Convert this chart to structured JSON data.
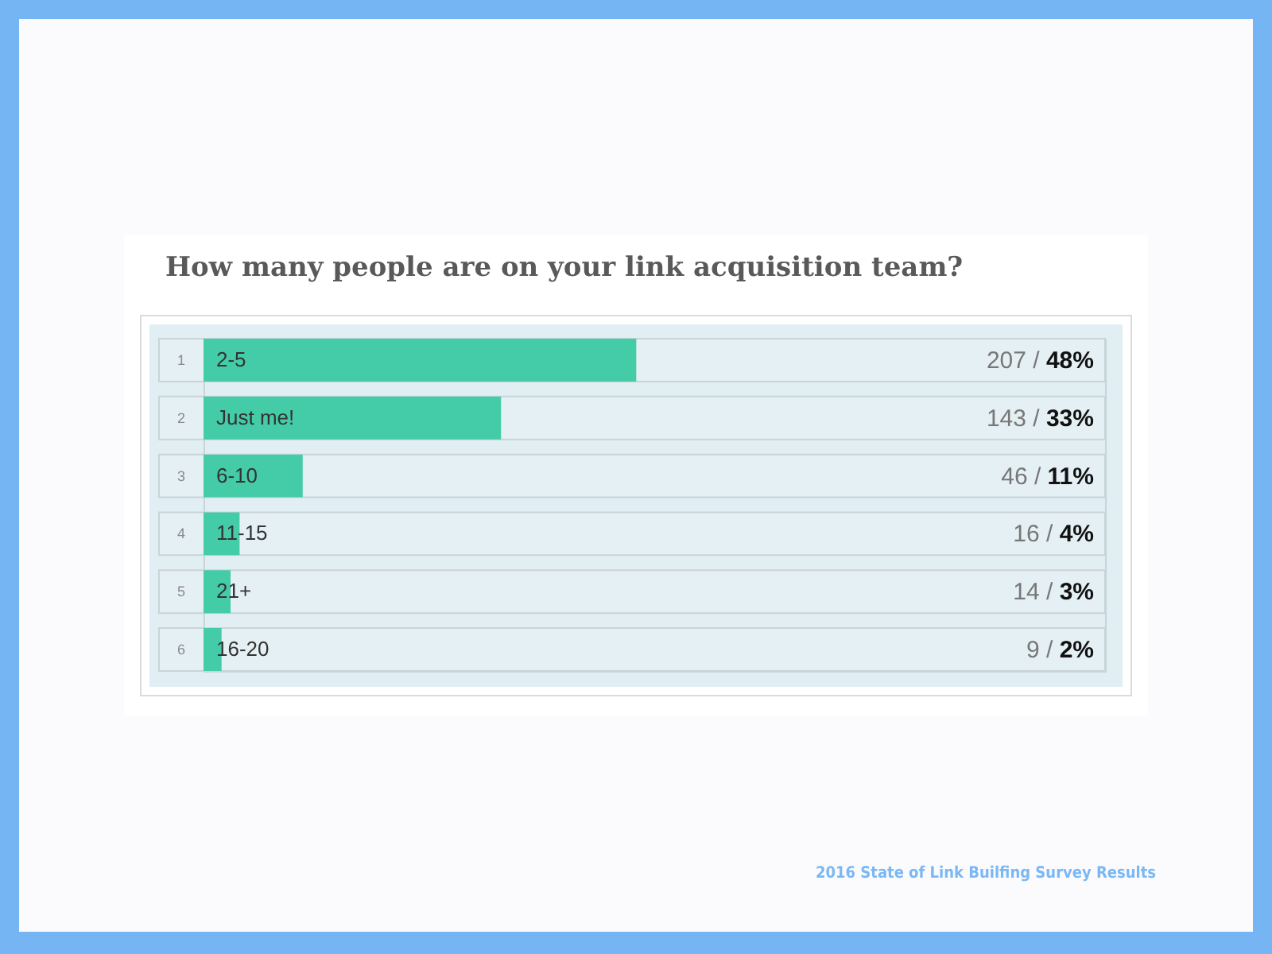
{
  "chart_data": {
    "type": "bar",
    "orientation": "horizontal",
    "title": "How many people are on your link acquisition team?",
    "categories": [
      "2-5",
      "Just me!",
      "6-10",
      "11-15",
      "21+",
      "16-20"
    ],
    "values": [
      48,
      33,
      11,
      4,
      3,
      2
    ],
    "value_labels": [
      "207 / 48%",
      "143 / 33%",
      "46 / 11%",
      "16 / 4%",
      "14 / 3%",
      "9 / 2%"
    ],
    "color": "#44cca9",
    "xlim": [
      0,
      100
    ],
    "tick_labels": "y",
    "annotations": [
      "1",
      "2",
      "3",
      "4",
      "5",
      "6",
      "2016 State of Link Builfing Survey Results"
    ]
  }
}
